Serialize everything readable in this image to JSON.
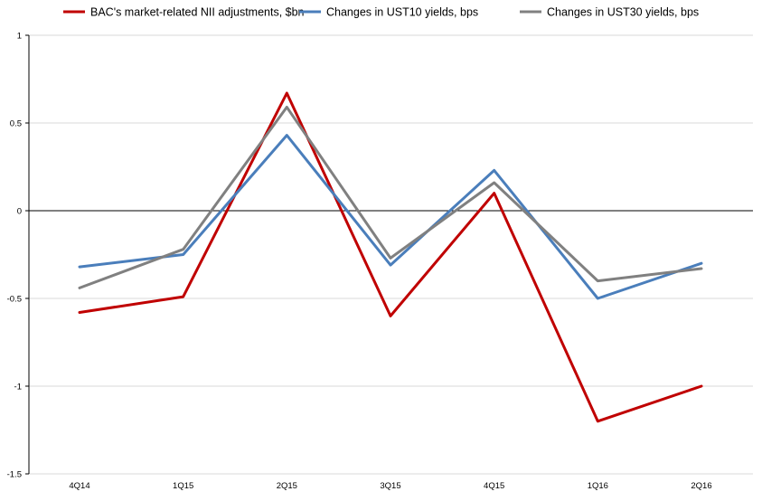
{
  "chart_data": {
    "type": "line",
    "title": "",
    "xlabel": "",
    "ylabel": "",
    "categories": [
      "4Q14",
      "1Q15",
      "2Q15",
      "3Q15",
      "4Q15",
      "1Q16",
      "2Q16"
    ],
    "ylim": [
      -1.5,
      1
    ],
    "yticks": [
      1,
      0.5,
      0,
      -0.5,
      -1,
      -1.5
    ],
    "ytick_labels": [
      "1",
      "0.5",
      "0",
      "-0.5",
      "-1",
      "-1.5"
    ],
    "grid": true,
    "zero_line": true,
    "legend_position": "top",
    "series": [
      {
        "name": "BAC's market-related NII adjustments, $bn",
        "color": "#c00000",
        "values": [
          -0.58,
          -0.49,
          0.67,
          -0.6,
          0.1,
          -1.2,
          -1.0
        ]
      },
      {
        "name": "Changes in UST10 yields, bps",
        "color": "#4a7ebb",
        "values": [
          -0.32,
          -0.25,
          0.43,
          -0.31,
          0.23,
          -0.5,
          -0.3
        ]
      },
      {
        "name": "Changes in UST30 yields, bps",
        "color": "#808080",
        "values": [
          -0.44,
          -0.22,
          0.59,
          -0.27,
          0.16,
          -0.4,
          -0.33
        ]
      }
    ]
  }
}
